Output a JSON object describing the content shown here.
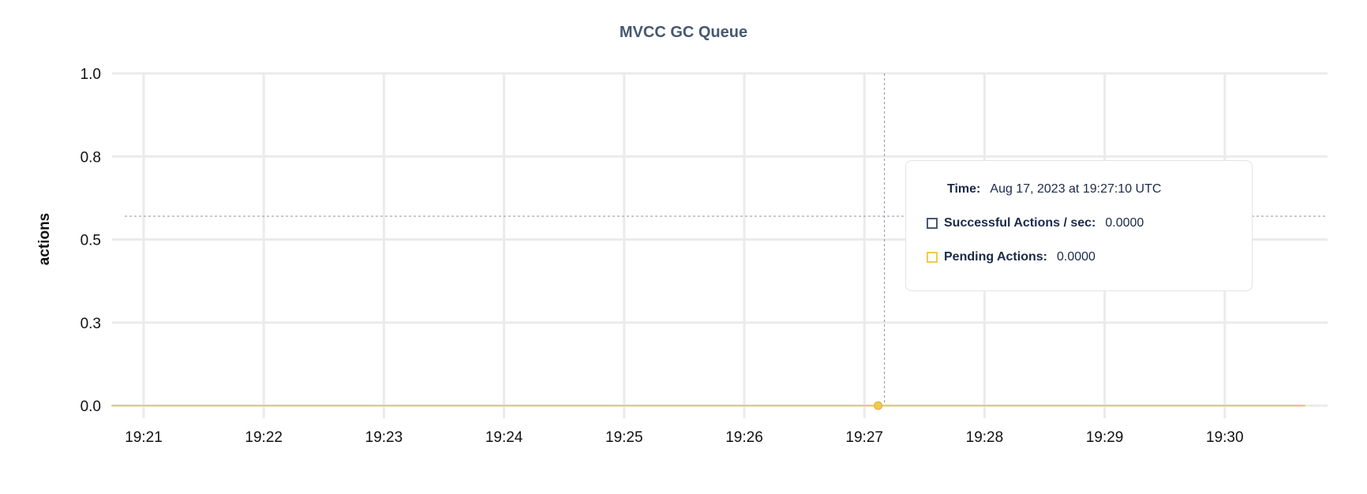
{
  "chart_data": {
    "type": "line",
    "title": "MVCC GC Queue",
    "ylabel": "actions",
    "xlabel": "",
    "ylim": [
      0,
      1
    ],
    "y_ticks": [
      0,
      0.25,
      0.5,
      0.75,
      1.0
    ],
    "y_tick_labels": [
      "0.0",
      "0.3",
      "0.5",
      "0.8",
      "1.0"
    ],
    "x_tick_labels": [
      "19:21",
      "19:22",
      "19:23",
      "19:24",
      "19:25",
      "19:26",
      "19:27",
      "19:28",
      "19:29",
      "19:30"
    ],
    "x_range": [
      "19:20:44",
      "19:30:40"
    ],
    "grid": true,
    "series": [
      {
        "name": "Successful Actions / sec",
        "color": "#475872",
        "x": [
          "19:20:44",
          "19:30:40"
        ],
        "values": [
          0,
          0
        ]
      },
      {
        "name": "Pending Actions",
        "color": "#f2c94c",
        "x": [
          "19:20:44",
          "19:30:40"
        ],
        "values": [
          0,
          0
        ]
      }
    ],
    "hover": {
      "x": "19:27:10",
      "y": 0.57
    }
  },
  "tooltip": {
    "time_label": "Time:",
    "time_value": "Aug 17, 2023 at 19:27:10 UTC",
    "rows": [
      {
        "label": "Successful Actions / sec:",
        "value": "0.0000",
        "color": "#475872"
      },
      {
        "label": "Pending Actions:",
        "value": "0.0000",
        "color": "#f2c94c"
      }
    ]
  }
}
